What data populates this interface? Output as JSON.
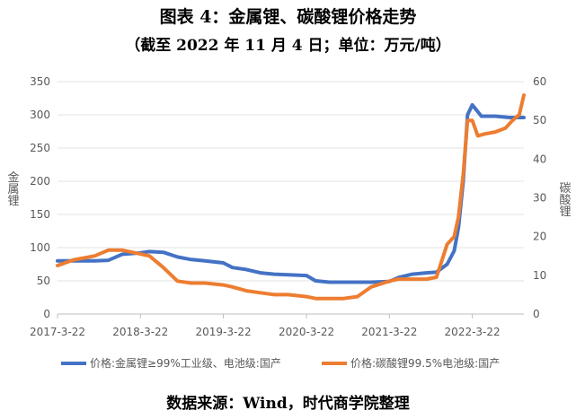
{
  "header": {
    "title": "图表 4：金属锂、碳酸锂价格走势",
    "subtitle": "（截至 2022 年 11 月 4 日；单位：万元/吨）"
  },
  "footer": {
    "source": "数据来源：Wind，时代商学院整理"
  },
  "chart_data": {
    "type": "line",
    "x_tick_labels": [
      "2017-3-22",
      "2018-3-22",
      "2019-3-22",
      "2020-3-22",
      "2021-3-22",
      "2022-3-22"
    ],
    "y_left": {
      "label": "金属锂",
      "ticks": [
        "0",
        "50",
        "100",
        "150",
        "200",
        "250",
        "300",
        "350"
      ],
      "ylim": [
        0,
        350
      ]
    },
    "y_right": {
      "label": "碳酸锂",
      "ticks": [
        "0",
        "10",
        "20",
        "30",
        "40",
        "50",
        "60"
      ],
      "ylim": [
        0,
        60
      ]
    },
    "grid": "horizontal",
    "legend_position": "bottom",
    "series": [
      {
        "name": "价格:金属锂≥99%工业级、电池级:国产",
        "axis": "left",
        "color": "#4472C4",
        "x": [
          "2017-03-22",
          "2017-06-01",
          "2017-09-01",
          "2017-11-01",
          "2018-01-01",
          "2018-03-22",
          "2018-05-01",
          "2018-07-01",
          "2018-09-01",
          "2018-11-01",
          "2019-01-01",
          "2019-03-22",
          "2019-05-01",
          "2019-07-01",
          "2019-09-01",
          "2019-11-01",
          "2020-01-01",
          "2020-03-22",
          "2020-05-01",
          "2020-07-01",
          "2020-09-01",
          "2020-11-01",
          "2021-01-01",
          "2021-03-22",
          "2021-05-01",
          "2021-07-01",
          "2021-09-01",
          "2021-10-15",
          "2021-12-01",
          "2022-01-01",
          "2022-01-20",
          "2022-02-10",
          "2022-03-01",
          "2022-03-22",
          "2022-05-01",
          "2022-07-01",
          "2022-09-01",
          "2022-11-04"
        ],
        "values": [
          80,
          80,
          80,
          81,
          90,
          92,
          94,
          93,
          86,
          82,
          80,
          77,
          70,
          67,
          62,
          60,
          59,
          58,
          50,
          48,
          48,
          48,
          48,
          49,
          55,
          60,
          62,
          63,
          75,
          95,
          130,
          200,
          300,
          315,
          298,
          298,
          296,
          296
        ]
      },
      {
        "name": "价格:碳酸锂99.5%电池级:国产",
        "axis": "right",
        "color": "#ED7D31",
        "x": [
          "2017-03-22",
          "2017-06-01",
          "2017-09-01",
          "2017-11-01",
          "2018-01-01",
          "2018-03-22",
          "2018-05-01",
          "2018-07-01",
          "2018-09-01",
          "2018-11-01",
          "2019-01-01",
          "2019-03-22",
          "2019-05-01",
          "2019-07-01",
          "2019-09-01",
          "2019-11-01",
          "2020-01-01",
          "2020-03-22",
          "2020-05-01",
          "2020-07-01",
          "2020-09-01",
          "2020-11-01",
          "2021-01-01",
          "2021-03-22",
          "2021-05-01",
          "2021-07-01",
          "2021-09-01",
          "2021-10-15",
          "2021-12-01",
          "2022-01-01",
          "2022-01-20",
          "2022-02-10",
          "2022-03-01",
          "2022-03-22",
          "2022-04-15",
          "2022-05-15",
          "2022-07-01",
          "2022-08-15",
          "2022-09-15",
          "2022-10-15",
          "2022-11-04"
        ],
        "values": [
          12.5,
          14,
          15,
          16.5,
          16.5,
          15.5,
          15,
          12,
          8.5,
          8,
          8,
          7.5,
          7,
          6,
          5.5,
          5,
          5,
          4.5,
          4,
          4,
          4,
          4.5,
          7,
          8.5,
          9,
          9,
          9,
          9.5,
          18,
          20,
          25,
          36,
          50,
          50,
          46,
          46.5,
          47,
          48,
          50,
          51.5,
          56.5
        ]
      }
    ]
  }
}
